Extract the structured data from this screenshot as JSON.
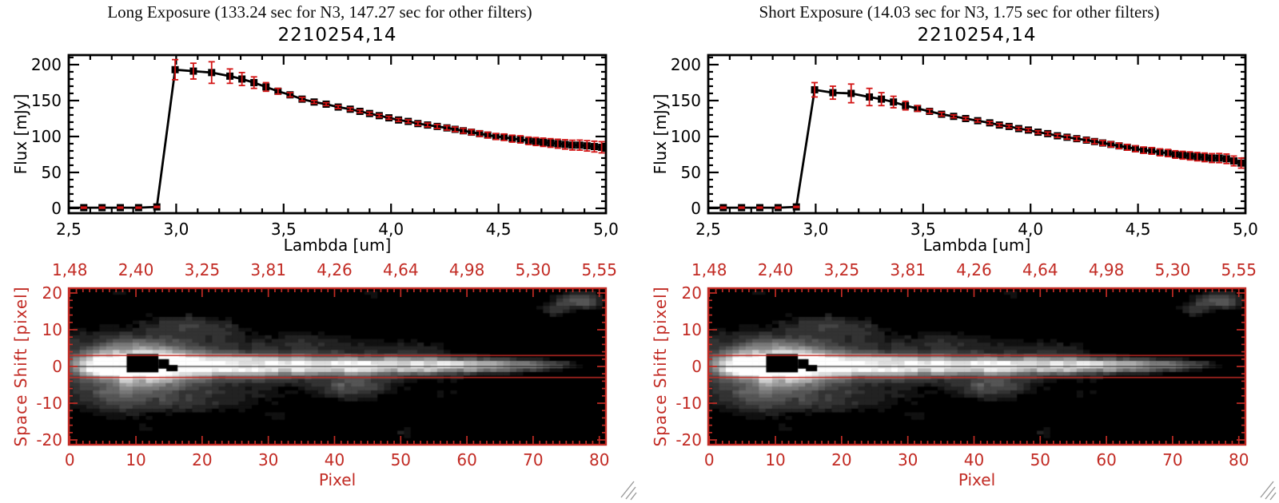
{
  "colors": {
    "axis_red": "#c22b24",
    "error_red": "#d31414",
    "plot_black": "#000000",
    "background": "#ffffff",
    "grip_gray": "#9a9a9a"
  },
  "panels": [
    {
      "id": "long-exposure",
      "title": "Long Exposure (133.24 sec for N3, 147.27 sec for other filters)",
      "plot_title": "2210254,14"
    },
    {
      "id": "short-exposure",
      "title": "Short Exposure (14.03 sec for N3, 1.75 sec for other filters)",
      "plot_title": "2210254,14"
    }
  ],
  "flux_plot": {
    "ylabel": "Flux [mJy]",
    "xlabel": "Lambda [um]",
    "xlim": [
      2.5,
      5.0
    ],
    "ylim": [
      0,
      200
    ],
    "xticks": [
      {
        "v": 2.5,
        "label": "2,5"
      },
      {
        "v": 3.0,
        "label": "3,0"
      },
      {
        "v": 3.5,
        "label": "3,5"
      },
      {
        "v": 4.0,
        "label": "4,0"
      },
      {
        "v": 4.5,
        "label": "4,5"
      },
      {
        "v": 5.0,
        "label": "5,0"
      }
    ],
    "yticks": [
      {
        "v": 0,
        "label": "0"
      },
      {
        "v": 50,
        "label": "50"
      },
      {
        "v": 100,
        "label": "100"
      },
      {
        "v": 150,
        "label": "150"
      },
      {
        "v": 200,
        "label": "200"
      }
    ],
    "x_minor_step": 0.1,
    "y_minor_step": 10
  },
  "image_plot": {
    "ylabel": "Space Shift [pixel]",
    "xlabel": "Pixel",
    "top_ticks": [
      {
        "p": 0,
        "label": "1,48"
      },
      {
        "p": 10,
        "label": "2,40"
      },
      {
        "p": 20,
        "label": "3,25"
      },
      {
        "p": 30,
        "label": "3,81"
      },
      {
        "p": 40,
        "label": "4,26"
      },
      {
        "p": 50,
        "label": "4,64"
      },
      {
        "p": 60,
        "label": "4,98"
      },
      {
        "p": 70,
        "label": "5,30"
      },
      {
        "p": 80,
        "label": "5,55"
      }
    ],
    "bottom_ticks": [
      {
        "p": 0,
        "label": "0"
      },
      {
        "p": 10,
        "label": "10"
      },
      {
        "p": 20,
        "label": "20"
      },
      {
        "p": 30,
        "label": "30"
      },
      {
        "p": 40,
        "label": "40"
      },
      {
        "p": 50,
        "label": "50"
      },
      {
        "p": 60,
        "label": "60"
      },
      {
        "p": 70,
        "label": "70"
      },
      {
        "p": 80,
        "label": "80"
      }
    ],
    "yticks": [
      {
        "s": 20,
        "label": "20"
      },
      {
        "s": 10,
        "label": "10"
      },
      {
        "s": 0,
        "label": "0"
      },
      {
        "s": -10,
        "label": "-10"
      },
      {
        "s": -20,
        "label": "-20"
      }
    ],
    "aperture_lines_s": [
      3,
      -3
    ],
    "center_line_s": 0,
    "heatmap_model": {
      "grid": {
        "p_min": 0,
        "p_max": 81,
        "s_min": -21,
        "s_max": 21
      },
      "core_offset": 0.3,
      "core_amp": [
        [
          0,
          0.25
        ],
        [
          2,
          0.5
        ],
        [
          4,
          0.8
        ],
        [
          6,
          1.0
        ],
        [
          55,
          1.0
        ],
        [
          60,
          0.92
        ],
        [
          65,
          0.78
        ],
        [
          69,
          0.6
        ],
        [
          72,
          0.45
        ],
        [
          75,
          0.28
        ],
        [
          77,
          0.15
        ],
        [
          79,
          0.05
        ],
        [
          81,
          0
        ]
      ],
      "core_sigma": [
        [
          0,
          1.6
        ],
        [
          10,
          2.05
        ],
        [
          30,
          1.8
        ],
        [
          50,
          1.5
        ],
        [
          65,
          1.2
        ],
        [
          72,
          0.9
        ],
        [
          78,
          0.6
        ],
        [
          81,
          0.5
        ]
      ],
      "glow": {
        "p": 11,
        "s": 0.5,
        "sp": 5,
        "ss": 4,
        "amp": 0.8
      },
      "halo_amp": [
        [
          0,
          0.3
        ],
        [
          8,
          0.38
        ],
        [
          20,
          0.3
        ],
        [
          30,
          0.24
        ],
        [
          40,
          0.2
        ],
        [
          50,
          0.16
        ],
        [
          58,
          0.1
        ],
        [
          65,
          0.05
        ],
        [
          70,
          0.02
        ],
        [
          81,
          0
        ]
      ],
      "halo_sigma": [
        [
          0,
          6.5
        ],
        [
          20,
          6.0
        ],
        [
          40,
          5.0
        ],
        [
          60,
          4.0
        ],
        [
          81,
          3.0
        ]
      ],
      "features": [
        [
          17,
          11.5,
          3.5,
          2.2,
          0.2
        ],
        [
          23,
          10,
          2.5,
          2,
          0.14
        ],
        [
          8,
          -9,
          5,
          3,
          0.2
        ],
        [
          20,
          -9.5,
          6,
          2.5,
          0.13
        ],
        [
          43,
          -5.5,
          3,
          2.2,
          0.36
        ],
        [
          36,
          6.5,
          6,
          2,
          0.11
        ],
        [
          52,
          5,
          4,
          1.8,
          0.09
        ],
        [
          58,
          -8,
          4,
          2,
          0.1
        ],
        [
          77,
          18,
          2.3,
          1.5,
          0.5
        ],
        [
          73,
          15.5,
          1.5,
          1.2,
          0.28
        ],
        [
          46,
          19.5,
          2,
          1.2,
          0.13
        ],
        [
          57,
          19.5,
          1.2,
          1,
          0.1
        ],
        [
          31,
          -14,
          2,
          1.5,
          0.12
        ],
        [
          51,
          -18,
          2,
          1.2,
          0.13
        ],
        [
          12,
          -16.5,
          1.5,
          1.2,
          0.11
        ],
        [
          7,
          20,
          2,
          1,
          0.1
        ]
      ],
      "mask_boxes": [
        [
          8.6,
          13.4,
          -1.6,
          3.4
        ],
        [
          13.4,
          15.0,
          -0.6,
          2.0
        ],
        [
          14.6,
          16.3,
          -1.3,
          0.4
        ]
      ],
      "noise": {
        "blotch": 0.12,
        "cell": 0.05,
        "threshold": 0.065,
        "levels": 15
      }
    }
  },
  "chart_data": [
    {
      "type": "line",
      "name": "long-exposure-spectrum",
      "title": "2210254,14",
      "xlabel": "Lambda [um]",
      "ylabel": "Flux [mJy]",
      "xlim": [
        2.5,
        5.0
      ],
      "ylim": [
        0,
        200
      ],
      "marker": "square",
      "error_bars": true,
      "x": [
        2.485,
        2.57,
        2.655,
        2.74,
        2.825,
        2.91,
        2.995,
        3.08,
        3.165,
        3.25,
        3.306,
        3.362,
        3.418,
        3.474,
        3.53,
        3.586,
        3.642,
        3.698,
        3.754,
        3.81,
        3.855,
        3.9,
        3.945,
        3.99,
        4.035,
        4.08,
        4.125,
        4.17,
        4.215,
        4.26,
        4.298,
        4.336,
        4.374,
        4.412,
        4.45,
        4.488,
        4.526,
        4.564,
        4.602,
        4.64,
        4.674,
        4.708,
        4.742,
        4.776,
        4.81,
        4.844,
        4.878,
        4.912,
        4.946,
        4.98
      ],
      "y": [
        1,
        1,
        1,
        1,
        1,
        2,
        193,
        191,
        189,
        184,
        180,
        175,
        169,
        163,
        158,
        152,
        148,
        145,
        141,
        138,
        135,
        132,
        129,
        126,
        123,
        121,
        118,
        116,
        114,
        112,
        110,
        108,
        106,
        104,
        102,
        100,
        99,
        97,
        96,
        94,
        93,
        92,
        91,
        90,
        89,
        88,
        88,
        87,
        86,
        85
      ],
      "yerr": [
        0.8,
        0.8,
        0.8,
        0.8,
        0.8,
        0.8,
        14,
        11,
        15,
        10,
        9,
        8,
        6,
        4,
        3,
        2.5,
        2,
        2,
        2,
        2,
        2,
        2,
        2,
        2,
        2,
        2.2,
        2.4,
        2.6,
        2.8,
        3,
        3.2,
        3.4,
        3.6,
        3.8,
        4,
        4.2,
        4.5,
        4.8,
        5,
        5.2,
        5.5,
        5.8,
        6,
        6.2,
        6.5,
        6.8,
        7,
        7.2,
        7.5,
        7.8
      ]
    },
    {
      "type": "line",
      "name": "short-exposure-spectrum",
      "title": "2210254,14",
      "xlabel": "Lambda [um]",
      "ylabel": "Flux [mJy]",
      "xlim": [
        2.5,
        5.0
      ],
      "ylim": [
        0,
        200
      ],
      "marker": "square",
      "error_bars": true,
      "x": [
        2.485,
        2.57,
        2.655,
        2.74,
        2.825,
        2.91,
        2.995,
        3.08,
        3.165,
        3.25,
        3.306,
        3.362,
        3.418,
        3.474,
        3.53,
        3.586,
        3.642,
        3.698,
        3.754,
        3.81,
        3.855,
        3.9,
        3.945,
        3.99,
        4.035,
        4.08,
        4.125,
        4.17,
        4.215,
        4.26,
        4.298,
        4.336,
        4.374,
        4.412,
        4.45,
        4.488,
        4.526,
        4.564,
        4.602,
        4.64,
        4.674,
        4.708,
        4.742,
        4.776,
        4.81,
        4.844,
        4.878,
        4.912,
        4.946,
        4.98
      ],
      "y": [
        1,
        1,
        1,
        1,
        1,
        2,
        165,
        161,
        160,
        155,
        152,
        148,
        143,
        139,
        135,
        131,
        128,
        125,
        122,
        119,
        116,
        114,
        111,
        109,
        106,
        104,
        101,
        99,
        97,
        95,
        93,
        91,
        89,
        87,
        85,
        83,
        81,
        80,
        78,
        77,
        75,
        74,
        73,
        72,
        71,
        70,
        70,
        69,
        66,
        63
      ],
      "yerr": [
        0.8,
        0.8,
        0.8,
        0.8,
        0.8,
        0.8,
        10,
        9,
        13,
        12,
        9,
        8,
        6,
        4,
        3,
        2.5,
        2,
        2,
        2,
        2,
        2,
        2,
        2,
        2,
        2,
        2.2,
        2.4,
        2.6,
        2.8,
        3,
        3.2,
        3.4,
        3.6,
        3.8,
        4,
        4.2,
        4.4,
        4.6,
        4.8,
        5,
        5.2,
        5.4,
        5.6,
        5.8,
        6,
        6.2,
        6.4,
        6.6,
        6.8,
        7
      ]
    },
    {
      "type": "heatmap",
      "name": "long-exposure-2d-spectrum",
      "xlabel": "Pixel",
      "ylabel": "Space Shift [pixel]",
      "x_range": [
        0,
        81
      ],
      "y_range": [
        -21,
        21
      ],
      "colormap": "grayscale",
      "model_ref": "image_plot.heatmap_model"
    },
    {
      "type": "heatmap",
      "name": "short-exposure-2d-spectrum",
      "xlabel": "Pixel",
      "ylabel": "Space Shift [pixel]",
      "x_range": [
        0,
        81
      ],
      "y_range": [
        -21,
        21
      ],
      "colormap": "grayscale",
      "model_ref": "image_plot.heatmap_model"
    }
  ]
}
